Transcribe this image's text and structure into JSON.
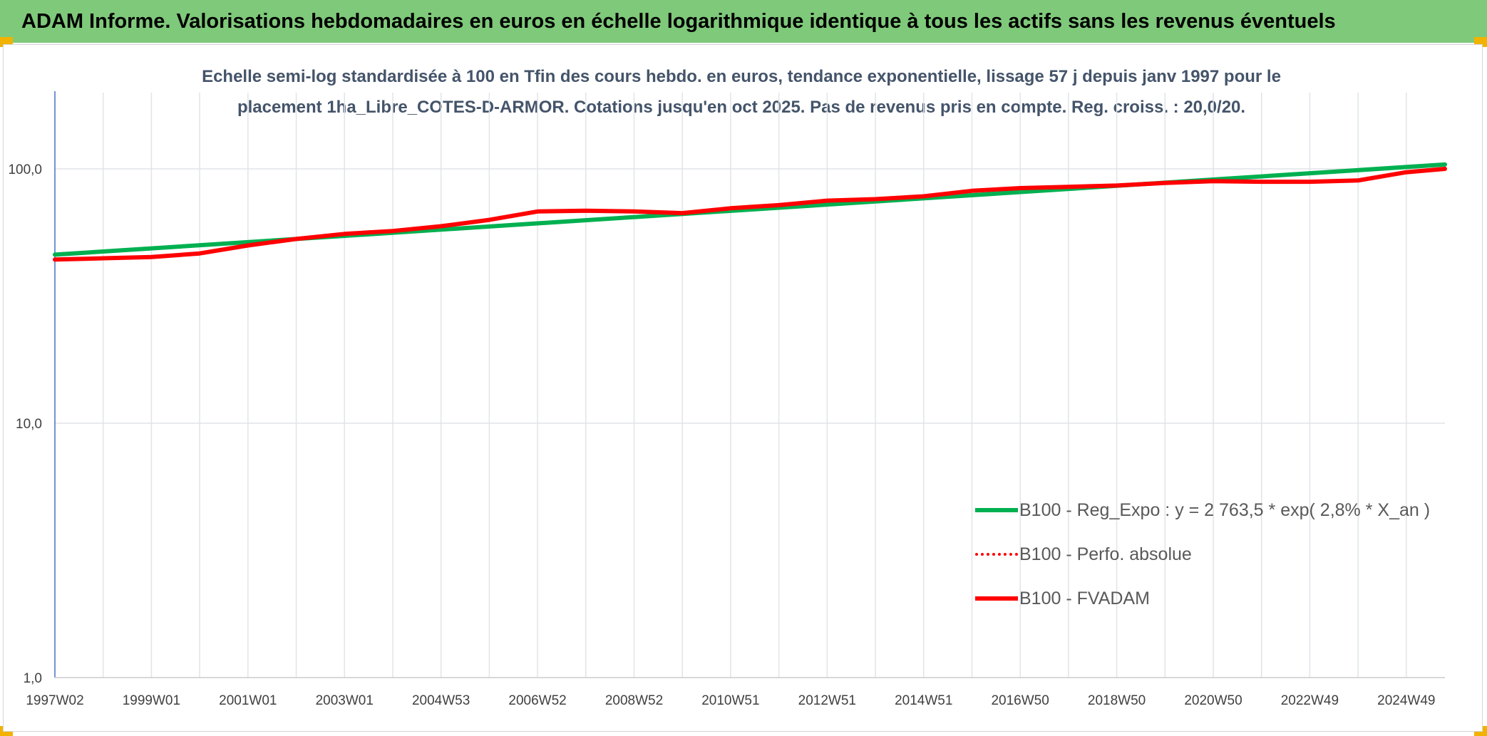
{
  "banner": {
    "title": "ADAM Informe. Valorisations hebdomadaires en euros en échelle logarithmique identique à tous les actifs sans les revenus éventuels"
  },
  "chart_data": {
    "type": "line",
    "title_line1": "Echelle semi-log standardisée à 100 en Tfin des cours hebdo. en euros, tendance exponentielle, lissage 57 j depuis janv 1997 pour le",
    "title_line2": "placement 1ha_Libre_COTES-D-ARMOR. Cotations jusqu'en oct 2025. Pas de revenus pris en compte. Reg. croiss. : 20,0/20.",
    "y_scale": "log",
    "ylim": [
      1,
      100
    ],
    "y_ticks": [
      {
        "value": 100,
        "label": "100,0"
      },
      {
        "value": 10,
        "label": "10,0"
      },
      {
        "value": 1,
        "label": "1,0"
      }
    ],
    "x_range": [
      1997.0,
      2025.8
    ],
    "x_ticks": [
      {
        "value": 1997.0,
        "label": "1997W02"
      },
      {
        "value": 1999.0,
        "label": "1999W01"
      },
      {
        "value": 2001.0,
        "label": "2001W01"
      },
      {
        "value": 2003.0,
        "label": "2003W01"
      },
      {
        "value": 2005.0,
        "label": "2004W53"
      },
      {
        "value": 2007.0,
        "label": "2006W52"
      },
      {
        "value": 2009.0,
        "label": "2008W52"
      },
      {
        "value": 2011.0,
        "label": "2010W51"
      },
      {
        "value": 2013.0,
        "label": "2012W51"
      },
      {
        "value": 2015.0,
        "label": "2014W51"
      },
      {
        "value": 2017.0,
        "label": "2016W50"
      },
      {
        "value": 2019.0,
        "label": "2018W50"
      },
      {
        "value": 2021.0,
        "label": "2020W50"
      },
      {
        "value": 2023.0,
        "label": "2022W49"
      },
      {
        "value": 2025.0,
        "label": "2024W49"
      }
    ],
    "grid": true,
    "legend_position": "bottom-right",
    "series": [
      {
        "name": "B100 - Reg_Expo : y = 2 763,5 * exp( 2,8% *  X_an )",
        "color": "#00b050",
        "style": "solid",
        "x": [
          1997.0,
          2025.8
        ],
        "y": [
          46.0,
          104.0
        ]
      },
      {
        "name": "B100 - Perfo. absolue",
        "color": "#ff0000",
        "style": "dotted",
        "x": [
          1997.0,
          1998.0,
          1999.0,
          2000.0,
          2001.0,
          2002.0,
          2003.0,
          2004.0,
          2005.0,
          2006.0,
          2007.0,
          2008.0,
          2009.0,
          2010.0,
          2011.0,
          2012.0,
          2013.0,
          2014.0,
          2015.0,
          2016.0,
          2017.0,
          2018.0,
          2019.0,
          2020.0,
          2021.0,
          2022.0,
          2023.0,
          2024.0,
          2025.0,
          2025.8
        ],
        "y": [
          44.0,
          44.5,
          45.0,
          46.5,
          50.0,
          53.0,
          55.5,
          57.0,
          59.5,
          63.0,
          68.0,
          68.5,
          68.0,
          67.0,
          70.0,
          72.0,
          75.0,
          76.0,
          78.0,
          82.0,
          84.0,
          85.0,
          86.0,
          88.0,
          89.5,
          89.0,
          89.0,
          90.0,
          97.0,
          100.0
        ]
      },
      {
        "name": "B100 - FVADAM",
        "color": "#ff0000",
        "style": "solid",
        "x": [
          1997.0,
          1998.0,
          1999.0,
          2000.0,
          2001.0,
          2002.0,
          2003.0,
          2004.0,
          2005.0,
          2006.0,
          2007.0,
          2008.0,
          2009.0,
          2010.0,
          2011.0,
          2012.0,
          2013.0,
          2014.0,
          2015.0,
          2016.0,
          2017.0,
          2018.0,
          2019.0,
          2020.0,
          2021.0,
          2022.0,
          2023.0,
          2024.0,
          2025.0,
          2025.8
        ],
        "y": [
          44.0,
          44.5,
          45.0,
          46.5,
          50.0,
          53.0,
          55.5,
          57.0,
          59.5,
          63.0,
          68.0,
          68.5,
          68.0,
          67.0,
          70.0,
          72.0,
          75.0,
          76.0,
          78.0,
          82.0,
          84.0,
          85.0,
          86.0,
          88.0,
          89.5,
          89.0,
          89.0,
          90.0,
          97.0,
          100.0
        ]
      }
    ]
  }
}
